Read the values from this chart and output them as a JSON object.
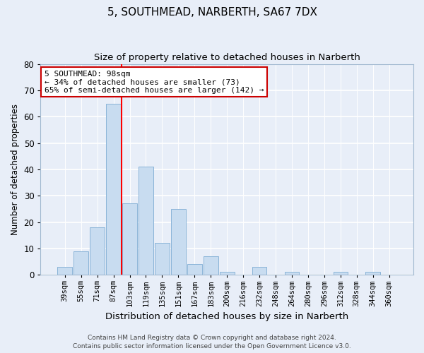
{
  "title": "5, SOUTHMEAD, NARBERTH, SA67 7DX",
  "subtitle": "Size of property relative to detached houses in Narberth",
  "xlabel": "Distribution of detached houses by size in Narberth",
  "ylabel": "Number of detached properties",
  "bar_labels": [
    "39sqm",
    "55sqm",
    "71sqm",
    "87sqm",
    "103sqm",
    "119sqm",
    "135sqm",
    "151sqm",
    "167sqm",
    "183sqm",
    "200sqm",
    "216sqm",
    "232sqm",
    "248sqm",
    "264sqm",
    "280sqm",
    "296sqm",
    "312sqm",
    "328sqm",
    "344sqm",
    "360sqm"
  ],
  "bar_heights": [
    3,
    9,
    18,
    65,
    27,
    41,
    12,
    25,
    4,
    7,
    1,
    0,
    3,
    0,
    1,
    0,
    0,
    1,
    0,
    1,
    0
  ],
  "bar_color": "#c8dcf0",
  "bar_edge_color": "#8ab4d8",
  "ylim": [
    0,
    80
  ],
  "red_line_x": 3.5,
  "annotation_text": "5 SOUTHMEAD: 98sqm\n← 34% of detached houses are smaller (73)\n65% of semi-detached houses are larger (142) →",
  "annotation_box_color": "#ffffff",
  "annotation_border_color": "#cc0000",
  "footer_line1": "Contains HM Land Registry data © Crown copyright and database right 2024.",
  "footer_line2": "Contains public sector information licensed under the Open Government Licence v3.0.",
  "bg_color": "#e8eef8",
  "title_fontsize": 11,
  "subtitle_fontsize": 9.5,
  "tick_fontsize": 7.5,
  "ylabel_fontsize": 8.5,
  "xlabel_fontsize": 9.5,
  "footer_fontsize": 6.5
}
